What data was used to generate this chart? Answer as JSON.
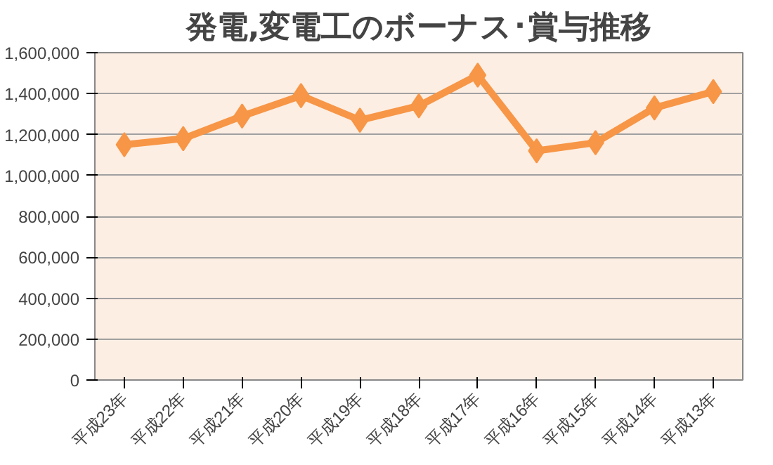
{
  "chart_data": {
    "type": "line",
    "title": "発電,変電工のボーナス･賞与推移",
    "categories": [
      "平成23年",
      "平成22年",
      "平成21年",
      "平成20年",
      "平成19年",
      "平成18年",
      "平成17年",
      "平成16年",
      "平成15年",
      "平成14年",
      "平成13年"
    ],
    "series": [
      {
        "color": "#f79646",
        "values": [
          1150000,
          1180000,
          1290000,
          1390000,
          1270000,
          1340000,
          1490000,
          1120000,
          1160000,
          1330000,
          1410000
        ]
      }
    ],
    "ylim": [
      0,
      1600000
    ],
    "yticks": [
      {
        "value": 0,
        "label": "0"
      },
      {
        "value": 200000,
        "label": "200,000"
      },
      {
        "value": 400000,
        "label": "400,000"
      },
      {
        "value": 600000,
        "label": "600,000"
      },
      {
        "value": 800000,
        "label": "800,000"
      },
      {
        "value": 1000000,
        "label": "1,000,000"
      },
      {
        "value": 1200000,
        "label": "1,200,000"
      },
      {
        "value": 1400000,
        "label": "1,400,000"
      },
      {
        "value": 1600000,
        "label": "1,600,000"
      }
    ],
    "grid": "y",
    "marker": "diamond",
    "line_style": "solid"
  }
}
